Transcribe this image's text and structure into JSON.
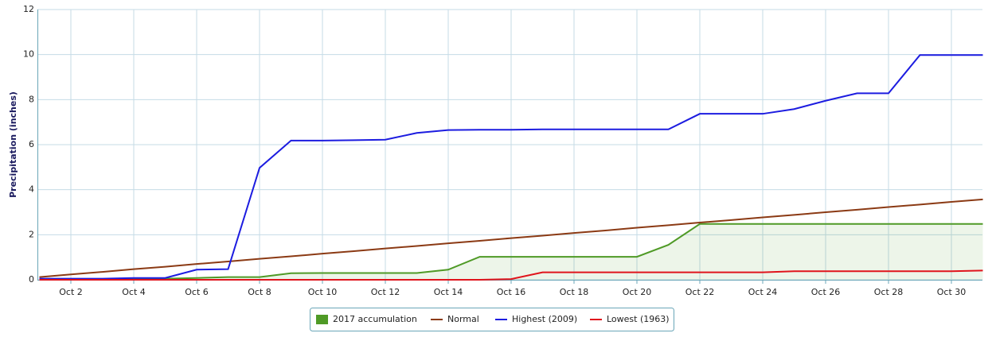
{
  "chart_data": {
    "type": "line",
    "y_label": "Precipitation (inches)",
    "categories": [
      null,
      "Oct 2",
      null,
      "Oct 4",
      null,
      "Oct 6",
      null,
      "Oct 8",
      null,
      "Oct 10",
      null,
      "Oct 12",
      null,
      "Oct 14",
      null,
      "Oct 16",
      null,
      "Oct 18",
      null,
      "Oct 20",
      null,
      "Oct 22",
      null,
      "Oct 24",
      null,
      "Oct 26",
      null,
      "Oct 28",
      null,
      "Oct 30",
      null
    ],
    "ylim": [
      0,
      12
    ],
    "yticks": [
      0,
      2,
      4,
      6,
      8,
      10,
      12
    ],
    "grid": true,
    "series": [
      {
        "name": "2017 accumulation",
        "color": "#4f9a26",
        "fill": true,
        "values": [
          0.02,
          0.02,
          0.03,
          0.05,
          0.05,
          0.08,
          0.12,
          0.12,
          0.29,
          0.3,
          0.3,
          0.3,
          0.3,
          0.45,
          1.02,
          1.02,
          1.02,
          1.02,
          1.02,
          1.02,
          1.55,
          2.48,
          2.48,
          2.48,
          2.48,
          2.48,
          2.48,
          2.48,
          2.48,
          2.48,
          2.48
        ]
      },
      {
        "name": "Normal",
        "color": "#8b3a14",
        "values": [
          0.12,
          0.24,
          0.35,
          0.47,
          0.58,
          0.7,
          0.81,
          0.93,
          1.04,
          1.16,
          1.27,
          1.39,
          1.5,
          1.62,
          1.73,
          1.85,
          1.96,
          2.08,
          2.19,
          2.31,
          2.42,
          2.54,
          2.65,
          2.77,
          2.88,
          3.0,
          3.11,
          3.23,
          3.34,
          3.46,
          3.57
        ]
      },
      {
        "name": "Highest (2009)",
        "color": "#1c1ce0",
        "values": [
          0.05,
          0.05,
          0.05,
          0.08,
          0.08,
          0.45,
          0.47,
          4.97,
          6.18,
          6.18,
          6.2,
          6.22,
          6.52,
          6.65,
          6.66,
          6.66,
          6.68,
          6.68,
          6.68,
          6.68,
          6.68,
          7.37,
          7.37,
          7.37,
          7.58,
          7.95,
          8.28,
          8.28,
          9.98,
          9.98,
          9.98
        ]
      },
      {
        "name": "Lowest (1963)",
        "color": "#e0141c",
        "values": [
          0,
          0,
          0,
          0,
          0,
          0,
          0,
          0,
          0,
          0,
          0,
          0,
          0,
          0,
          0,
          0.03,
          0.33,
          0.33,
          0.33,
          0.33,
          0.33,
          0.33,
          0.33,
          0.33,
          0.38,
          0.38,
          0.38,
          0.38,
          0.38,
          0.38,
          0.41
        ]
      }
    ]
  }
}
